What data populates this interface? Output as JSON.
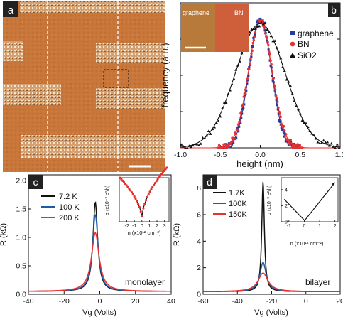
{
  "panels": {
    "a": {
      "label": "a"
    },
    "b": {
      "label": "b",
      "inset_labels": [
        "graphene",
        "BN"
      ]
    },
    "c": {
      "label": "c",
      "annotation": "monolayer"
    },
    "d": {
      "label": "d",
      "annotation": "bilayer"
    }
  },
  "colors": {
    "black": "#111111",
    "blue": "#1f5aa6",
    "red": "#e8312e",
    "navy": "#2a3a9c",
    "afm_base": "#c8763a"
  },
  "chart_data": [
    {
      "type": "image",
      "panel": "a",
      "description": "",
      "scale_bar": true
    },
    {
      "type": "scatter",
      "panel": "b",
      "xlabel": "height (nm)",
      "ylabel": "frequency (a.u.)",
      "xlim": [
        -1.0,
        1.0
      ],
      "xticks": [
        "-1.0",
        "-0.5",
        "0.0",
        "0.5",
        "1.0"
      ],
      "series": [
        {
          "name": "graphene",
          "marker": "square",
          "color": "#2a3a9c",
          "center": 0.0,
          "sigma": 0.14,
          "peak": 1.0
        },
        {
          "name": "BN",
          "marker": "circle",
          "color": "#e8312e",
          "center": 0.0,
          "sigma": 0.15,
          "peak": 0.97
        },
        {
          "name": "SiO2",
          "marker": "triangle",
          "color": "#111111",
          "center": 0.0,
          "sigma": 0.31,
          "peak": 0.96
        }
      ]
    },
    {
      "type": "line",
      "panel": "c",
      "xlabel": "Vg (Volts)",
      "ylabel": "R (kΩ)",
      "xlim": [
        -40,
        40
      ],
      "ylim": [
        0,
        2.1
      ],
      "xticks": [
        "-40",
        "-20",
        "0",
        "20",
        "40"
      ],
      "yticks": [
        "0.0",
        "0.5",
        "1.0",
        "1.5",
        "2.0"
      ],
      "series": [
        {
          "name": "7.2 K",
          "color": "#111111",
          "peak": 1.62,
          "v0": -2.5,
          "base": 0.05
        },
        {
          "name": "100 K",
          "color": "#1f5aa6",
          "peak": 1.4,
          "v0": -2.5,
          "base": 0.05
        },
        {
          "name": "200 K",
          "color": "#e8312e",
          "peak": 1.08,
          "v0": -2.5,
          "base": 0.05
        }
      ],
      "inset": {
        "xlabel": "n (x10¹² cm⁻²)",
        "ylabel": "σ (x10⁻³ e²/h)",
        "xticks": [
          "-2",
          "-1",
          "0",
          "1",
          "2",
          "3"
        ]
      }
    },
    {
      "type": "line",
      "panel": "d",
      "xlabel": "Vg (Volts)",
      "ylabel": "R (kΩ)",
      "xlim": [
        -60,
        20
      ],
      "ylim": [
        0,
        9
      ],
      "xticks": [
        "-60",
        "-40",
        "-20",
        "0",
        "20"
      ],
      "yticks": [
        "0",
        "2",
        "4",
        "6",
        "8"
      ],
      "series": [
        {
          "name": "1.7K",
          "color": "#111111",
          "peak": 8.5,
          "v0": -25,
          "base": 0.2
        },
        {
          "name": "100K",
          "color": "#1f5aa6",
          "peak": 2.4,
          "v0": -25,
          "base": 0.2
        },
        {
          "name": "150K",
          "color": "#e8312e",
          "peak": 1.6,
          "v0": -25,
          "base": 0.2
        }
      ],
      "inset": {
        "xlabel": "n (x10¹² cm⁻²)",
        "ylabel": "σ (x10⁻³ e²/h)",
        "xticks": [
          "-1",
          "0",
          "1",
          "2"
        ],
        "yticks": [
          "0",
          "2",
          "4"
        ]
      }
    }
  ]
}
